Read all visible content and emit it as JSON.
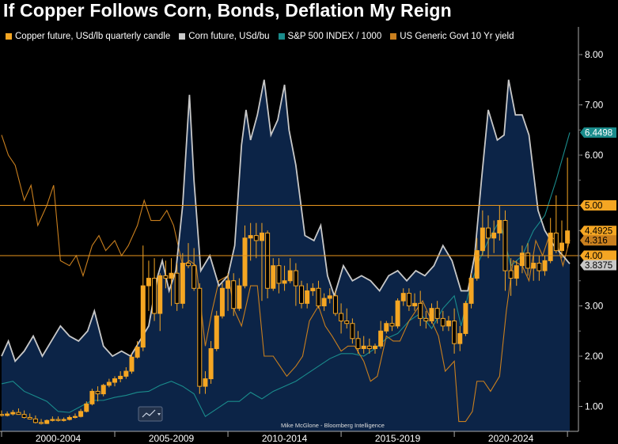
{
  "title": "If Copper Follows Corn, Bonds, Deflation My Reign",
  "credit": "Mike McGlone - Bloomberg Intelligence",
  "colors": {
    "copper": "#f5a623",
    "corn": "#c8c8c8",
    "corn_fill": "#0c2447",
    "spx": "#1a8c8c",
    "yield": "#c97f1e",
    "hline": "#e8961e"
  },
  "legend": [
    {
      "label": "Copper future, USd/lb quarterly candle",
      "color": "#f5a623"
    },
    {
      "label": "Corn future, USd/bu",
      "color": "#c8c8c8"
    },
    {
      "label": "S&P 500 INDEX / 1000",
      "color": "#1a8c8c"
    },
    {
      "label": "US Generic Govt 10 Yr yield",
      "color": "#c97f1e"
    }
  ],
  "chart_data": {
    "type": "line",
    "ylim": [
      0.5,
      8.5
    ],
    "y_ticks": [
      "1.00",
      "2.00",
      "3.00",
      "4.00",
      "5.00",
      "6.00",
      "7.00",
      "8.00"
    ],
    "x_range": [
      2000.0,
      2025.1
    ],
    "x_tick_labels": [
      "2000-2004",
      "2005-2009",
      "2010-2014",
      "2015-2019",
      "2020-2024"
    ],
    "reference_lines": [
      4.0,
      5.0
    ],
    "last_value_tags": [
      {
        "label": "6.4498",
        "value": 6.4498,
        "bg": "#1a8c8c",
        "fg": "#ffffff"
      },
      {
        "label": "5.00",
        "value": 5.0,
        "bg": "#f5a623",
        "fg": "#000000"
      },
      {
        "label": "4.4925",
        "value": 4.4925,
        "bg": "#f5a623",
        "fg": "#000000"
      },
      {
        "label": "4.316",
        "value": 4.316,
        "bg": "#c97f1e",
        "fg": "#000000"
      },
      {
        "label": "4.00",
        "value": 4.0,
        "bg": "#f5a623",
        "fg": "#000000"
      },
      {
        "label": "3.8375",
        "value": 3.8375,
        "bg": "#c8c8c8",
        "fg": "#000000"
      }
    ],
    "series": [
      {
        "name": "Corn future, USd/bu",
        "x": [
          2000.0,
          2000.3,
          2000.6,
          2001.0,
          2001.4,
          2001.8,
          2002.2,
          2002.6,
          2003.0,
          2003.4,
          2003.8,
          2004.1,
          2004.5,
          2004.9,
          2005.3,
          2005.7,
          2006.1,
          2006.5,
          2006.9,
          2007.1,
          2007.4,
          2007.7,
          2008.0,
          2008.3,
          2008.5,
          2008.8,
          2009.2,
          2009.6,
          2010.0,
          2010.3,
          2010.6,
          2010.8,
          2011.0,
          2011.3,
          2011.6,
          2011.9,
          2012.2,
          2012.5,
          2012.7,
          2013.0,
          2013.4,
          2013.8,
          2014.1,
          2014.4,
          2014.7,
          2015.1,
          2015.5,
          2015.9,
          2016.3,
          2016.7,
          2017.1,
          2017.5,
          2017.9,
          2018.3,
          2018.7,
          2019.1,
          2019.5,
          2019.9,
          2020.3,
          2020.6,
          2020.9,
          2021.2,
          2021.5,
          2021.9,
          2022.2,
          2022.4,
          2022.7,
          2023.0,
          2023.3,
          2023.7,
          2024.0,
          2024.4,
          2024.8,
          2025.1
        ],
        "values": [
          2.0,
          2.3,
          1.9,
          2.1,
          2.4,
          2.0,
          2.3,
          2.6,
          2.4,
          2.3,
          2.5,
          2.9,
          2.2,
          2.0,
          2.1,
          2.0,
          2.3,
          2.6,
          3.6,
          3.9,
          3.3,
          3.7,
          5.0,
          7.2,
          5.5,
          3.7,
          4.0,
          3.4,
          3.6,
          4.2,
          6.2,
          6.9,
          6.3,
          6.8,
          7.5,
          6.4,
          6.7,
          7.4,
          6.5,
          5.8,
          4.4,
          4.3,
          4.6,
          3.6,
          3.2,
          3.8,
          3.5,
          3.6,
          3.5,
          3.3,
          3.6,
          3.7,
          3.5,
          3.7,
          3.6,
          3.8,
          4.2,
          3.9,
          3.3,
          3.3,
          4.0,
          5.5,
          6.9,
          6.3,
          6.4,
          7.5,
          6.8,
          6.8,
          6.4,
          4.9,
          4.5,
          4.2,
          4.0,
          3.8375
        ]
      },
      {
        "name": "S&P 500 INDEX / 1000",
        "x": [
          2000.0,
          2000.5,
          2001.0,
          2001.5,
          2002.0,
          2002.5,
          2003.0,
          2003.5,
          2004.0,
          2004.5,
          2005.0,
          2005.5,
          2006.0,
          2006.5,
          2007.0,
          2007.5,
          2008.0,
          2008.5,
          2009.0,
          2009.5,
          2010.0,
          2010.5,
          2011.0,
          2011.5,
          2012.0,
          2012.5,
          2013.0,
          2013.5,
          2014.0,
          2014.5,
          2015.0,
          2015.5,
          2016.0,
          2016.5,
          2017.0,
          2017.5,
          2018.0,
          2018.5,
          2019.0,
          2019.5,
          2020.0,
          2020.3,
          2020.6,
          2021.0,
          2021.5,
          2022.0,
          2022.5,
          2023.0,
          2023.5,
          2024.0,
          2024.5,
          2025.1
        ],
        "values": [
          1.45,
          1.5,
          1.3,
          1.2,
          1.1,
          0.9,
          0.88,
          1.0,
          1.12,
          1.12,
          1.18,
          1.22,
          1.28,
          1.3,
          1.42,
          1.5,
          1.4,
          1.25,
          0.8,
          0.95,
          1.1,
          1.1,
          1.28,
          1.15,
          1.3,
          1.4,
          1.5,
          1.65,
          1.8,
          1.95,
          2.05,
          2.05,
          2.0,
          2.15,
          2.35,
          2.45,
          2.7,
          2.85,
          2.55,
          2.95,
          3.2,
          2.6,
          3.2,
          3.8,
          4.3,
          4.7,
          3.8,
          4.0,
          4.5,
          4.8,
          5.5,
          6.4498
        ]
      },
      {
        "name": "US Generic Govt 10 Yr yield",
        "x": [
          2000.0,
          2000.3,
          2000.6,
          2001.0,
          2001.3,
          2001.6,
          2002.0,
          2002.3,
          2002.6,
          2003.0,
          2003.3,
          2003.6,
          2004.0,
          2004.3,
          2004.6,
          2005.0,
          2005.3,
          2005.6,
          2006.0,
          2006.3,
          2006.6,
          2007.0,
          2007.3,
          2007.6,
          2008.0,
          2008.3,
          2008.6,
          2009.0,
          2009.3,
          2009.6,
          2010.0,
          2010.3,
          2010.6,
          2011.0,
          2011.3,
          2011.6,
          2012.0,
          2012.3,
          2012.6,
          2013.0,
          2013.3,
          2013.6,
          2014.0,
          2014.3,
          2014.6,
          2015.0,
          2015.3,
          2015.6,
          2016.0,
          2016.3,
          2016.6,
          2017.0,
          2017.3,
          2017.6,
          2018.0,
          2018.3,
          2018.6,
          2019.0,
          2019.3,
          2019.6,
          2020.0,
          2020.2,
          2020.5,
          2020.8,
          2021.0,
          2021.3,
          2021.6,
          2022.0,
          2022.3,
          2022.6,
          2023.0,
          2023.3,
          2023.6,
          2023.9,
          2024.2,
          2024.5,
          2024.8,
          2025.1
        ],
        "values": [
          6.4,
          6.0,
          5.8,
          5.1,
          5.4,
          4.6,
          5.0,
          5.4,
          3.9,
          3.8,
          4.0,
          3.6,
          4.2,
          4.4,
          4.1,
          4.3,
          4.0,
          4.2,
          4.6,
          5.1,
          4.7,
          4.7,
          4.9,
          4.6,
          3.8,
          3.9,
          3.8,
          2.2,
          2.9,
          3.5,
          3.6,
          2.9,
          2.6,
          3.4,
          3.4,
          2.0,
          2.0,
          1.8,
          1.6,
          1.8,
          2.0,
          2.7,
          3.0,
          2.6,
          2.4,
          2.1,
          2.2,
          2.2,
          1.9,
          1.5,
          1.6,
          2.4,
          2.3,
          2.3,
          2.7,
          2.9,
          3.1,
          2.7,
          2.4,
          1.7,
          1.9,
          0.7,
          0.7,
          0.9,
          1.5,
          1.5,
          1.3,
          1.6,
          2.9,
          3.9,
          3.8,
          3.5,
          4.3,
          4.0,
          4.4,
          4.3,
          3.8,
          4.316
        ]
      },
      {
        "name": "Copper future, USd/lb quarterly candle",
        "type": "candlestick",
        "x": [
          2000.0,
          2000.25,
          2000.5,
          2000.75,
          2001.0,
          2001.25,
          2001.5,
          2001.75,
          2002.0,
          2002.25,
          2002.5,
          2002.75,
          2003.0,
          2003.25,
          2003.5,
          2003.75,
          2004.0,
          2004.25,
          2004.5,
          2004.75,
          2005.0,
          2005.25,
          2005.5,
          2005.75,
          2006.0,
          2006.25,
          2006.5,
          2006.75,
          2007.0,
          2007.25,
          2007.5,
          2007.75,
          2008.0,
          2008.25,
          2008.5,
          2008.75,
          2009.0,
          2009.25,
          2009.5,
          2009.75,
          2010.0,
          2010.25,
          2010.5,
          2010.75,
          2011.0,
          2011.25,
          2011.5,
          2011.75,
          2012.0,
          2012.25,
          2012.5,
          2012.75,
          2013.0,
          2013.25,
          2013.5,
          2013.75,
          2014.0,
          2014.25,
          2014.5,
          2014.75,
          2015.0,
          2015.25,
          2015.5,
          2015.75,
          2016.0,
          2016.25,
          2016.5,
          2016.75,
          2017.0,
          2017.25,
          2017.5,
          2017.75,
          2018.0,
          2018.25,
          2018.5,
          2018.75,
          2019.0,
          2019.25,
          2019.5,
          2019.75,
          2020.0,
          2020.25,
          2020.5,
          2020.75,
          2021.0,
          2021.25,
          2021.5,
          2021.75,
          2022.0,
          2022.25,
          2022.5,
          2022.75,
          2023.0,
          2023.25,
          2023.5,
          2023.75,
          2024.0,
          2024.25,
          2024.5,
          2024.75,
          2025.0
        ],
        "open": [
          0.84,
          0.82,
          0.85,
          0.88,
          0.84,
          0.78,
          0.75,
          0.68,
          0.66,
          0.72,
          0.74,
          0.72,
          0.74,
          0.78,
          0.8,
          0.9,
          1.05,
          1.3,
          1.25,
          1.42,
          1.48,
          1.55,
          1.6,
          1.7,
          1.98,
          2.18,
          3.4,
          3.55,
          2.85,
          3.6,
          3.55,
          3.65,
          3.05,
          3.85,
          3.8,
          3.35,
          1.4,
          1.55,
          2.15,
          2.8,
          3.35,
          3.5,
          2.95,
          3.4,
          4.35,
          4.4,
          4.3,
          4.45,
          3.35,
          3.8,
          3.45,
          3.5,
          3.7,
          3.4,
          3.05,
          3.3,
          3.35,
          3.0,
          3.15,
          3.2,
          2.85,
          2.7,
          2.65,
          2.35,
          2.15,
          2.2,
          2.15,
          2.2,
          2.5,
          2.65,
          2.6,
          3.1,
          3.25,
          3.0,
          3.05,
          2.75,
          2.7,
          2.95,
          2.75,
          2.6,
          2.7,
          2.25,
          2.45,
          3.05,
          3.55,
          4.1,
          4.55,
          4.35,
          4.45,
          4.7,
          3.7,
          3.55,
          3.8,
          4.05,
          3.75,
          3.85,
          3.7,
          3.9,
          4.45,
          4.1,
          4.25
        ],
        "high": [
          0.92,
          0.9,
          0.93,
          0.96,
          0.92,
          0.86,
          0.82,
          0.75,
          0.74,
          0.8,
          0.8,
          0.78,
          0.82,
          0.86,
          0.95,
          1.1,
          1.35,
          1.4,
          1.45,
          1.55,
          1.6,
          1.7,
          1.78,
          2.05,
          2.3,
          4.2,
          3.9,
          3.95,
          3.65,
          3.9,
          3.95,
          3.85,
          4.05,
          4.25,
          4.15,
          3.45,
          1.7,
          2.3,
          2.9,
          3.45,
          3.65,
          3.65,
          3.55,
          4.6,
          4.65,
          4.65,
          4.65,
          4.5,
          3.95,
          3.95,
          3.8,
          3.95,
          3.85,
          3.5,
          3.45,
          3.45,
          3.5,
          3.25,
          3.35,
          3.3,
          3.05,
          2.95,
          2.75,
          2.5,
          2.4,
          2.35,
          2.25,
          2.7,
          2.7,
          2.8,
          3.15,
          3.35,
          3.35,
          3.25,
          3.3,
          2.9,
          3.05,
          3.1,
          2.9,
          2.8,
          2.95,
          2.6,
          3.1,
          3.65,
          4.35,
          4.9,
          4.8,
          4.7,
          5.0,
          4.9,
          3.95,
          3.9,
          4.2,
          4.25,
          4.0,
          4.0,
          4.0,
          4.75,
          5.2,
          4.7,
          5.95
        ],
        "low": [
          0.8,
          0.8,
          0.82,
          0.84,
          0.76,
          0.74,
          0.66,
          0.64,
          0.65,
          0.7,
          0.7,
          0.7,
          0.72,
          0.76,
          0.78,
          0.88,
          1.02,
          1.1,
          1.2,
          1.38,
          1.4,
          1.48,
          1.55,
          1.65,
          1.95,
          2.1,
          2.9,
          2.7,
          2.5,
          3.35,
          3.0,
          2.9,
          2.95,
          3.75,
          3.3,
          1.25,
          1.25,
          1.45,
          2.1,
          2.75,
          2.9,
          2.8,
          2.9,
          3.35,
          3.9,
          3.95,
          3.1,
          3.15,
          3.3,
          3.25,
          3.3,
          3.45,
          3.0,
          2.95,
          2.95,
          3.2,
          2.95,
          2.9,
          3.05,
          2.8,
          2.45,
          2.55,
          2.25,
          2.05,
          2.05,
          2.05,
          2.05,
          2.15,
          2.45,
          2.5,
          2.55,
          3.0,
          2.9,
          2.9,
          2.6,
          2.55,
          2.65,
          2.65,
          2.5,
          2.5,
          2.05,
          2.1,
          2.4,
          2.95,
          3.5,
          4.0,
          3.95,
          4.05,
          4.3,
          3.3,
          3.2,
          3.4,
          3.65,
          3.6,
          3.5,
          3.5,
          3.6,
          3.85,
          4.05,
          3.95,
          4.15
        ],
        "close": [
          0.82,
          0.85,
          0.88,
          0.84,
          0.78,
          0.75,
          0.68,
          0.66,
          0.72,
          0.74,
          0.72,
          0.74,
          0.78,
          0.8,
          0.9,
          1.05,
          1.3,
          1.25,
          1.42,
          1.48,
          1.55,
          1.6,
          1.7,
          1.98,
          2.18,
          3.4,
          3.55,
          2.85,
          3.6,
          3.55,
          3.65,
          3.05,
          3.85,
          3.8,
          3.35,
          1.4,
          1.55,
          2.15,
          2.8,
          3.35,
          3.5,
          2.95,
          3.4,
          4.35,
          4.4,
          4.3,
          4.45,
          3.35,
          3.8,
          3.45,
          3.5,
          3.7,
          3.4,
          3.05,
          3.3,
          3.35,
          3.0,
          3.15,
          3.2,
          2.85,
          2.7,
          2.65,
          2.35,
          2.15,
          2.2,
          2.15,
          2.2,
          2.5,
          2.65,
          2.6,
          3.1,
          3.25,
          3.0,
          3.05,
          2.75,
          2.7,
          2.95,
          2.75,
          2.6,
          2.7,
          2.25,
          2.45,
          3.05,
          3.55,
          4.1,
          4.55,
          4.35,
          4.45,
          4.7,
          3.7,
          3.55,
          3.8,
          4.05,
          3.75,
          3.85,
          3.7,
          3.9,
          4.45,
          4.1,
          4.25,
          4.4925
        ]
      }
    ]
  }
}
